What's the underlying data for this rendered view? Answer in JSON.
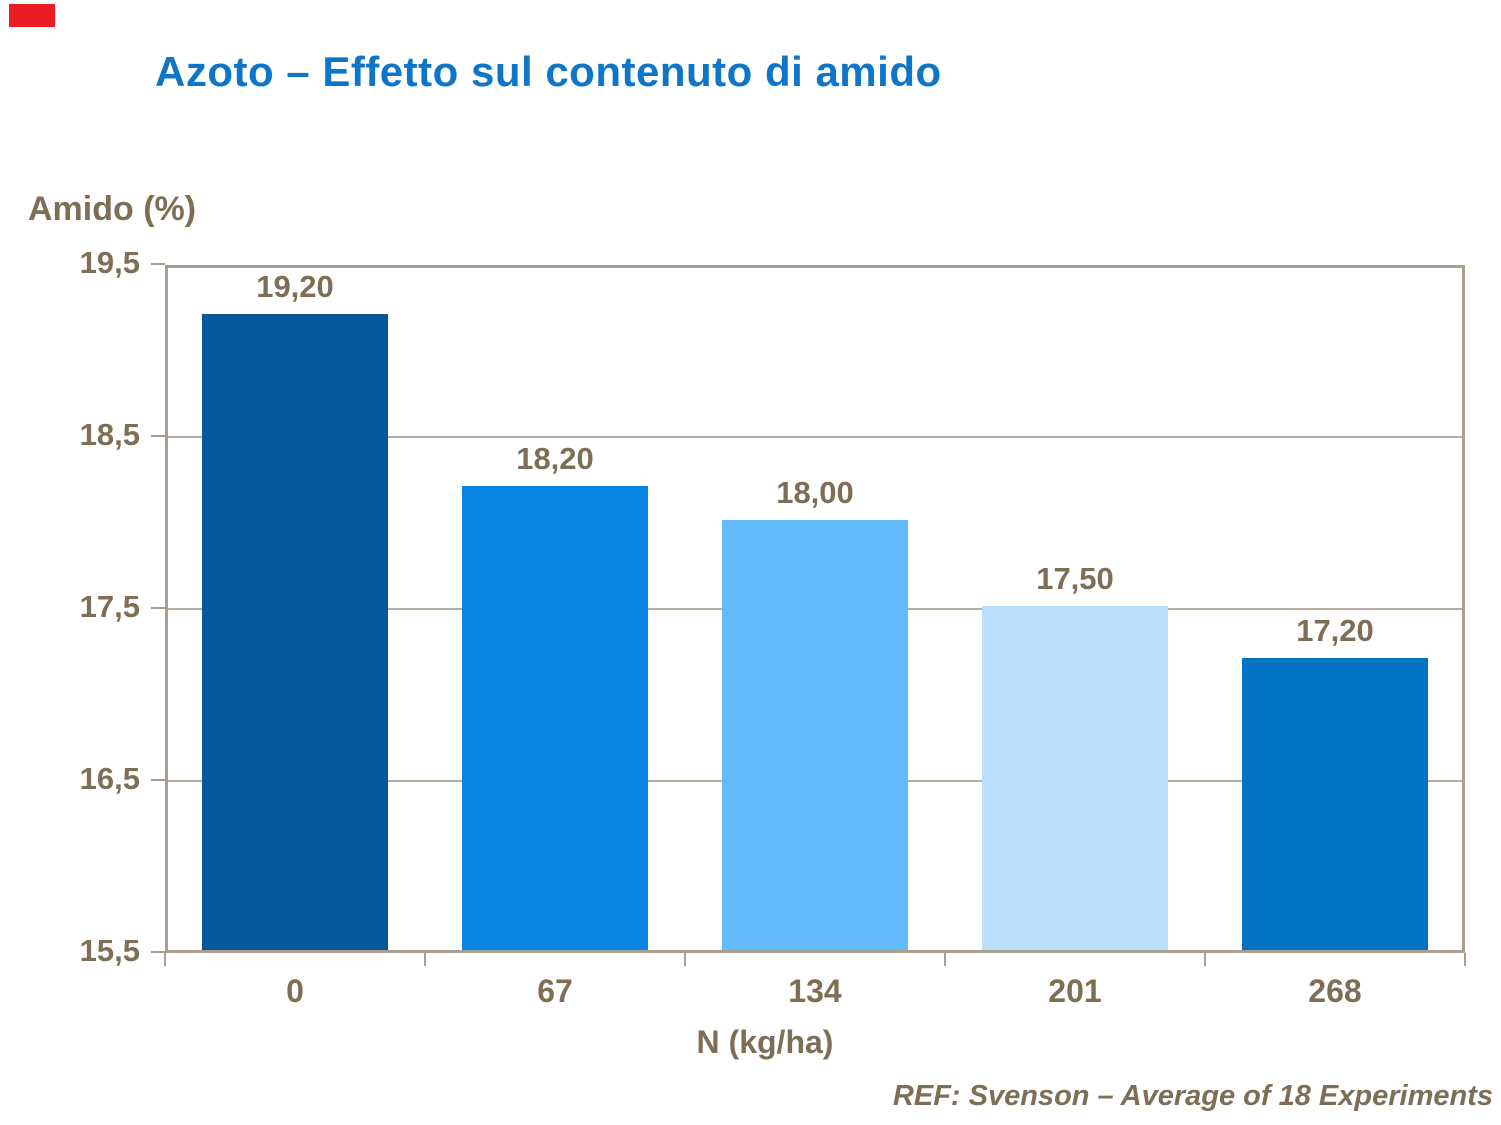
{
  "accent": {
    "red_block": "#EC1C24",
    "title_color": "#0E76C8",
    "text_brown": "#7E6E55",
    "plot_border": "#A89E91",
    "gridline": "#B6ADA1"
  },
  "chart_data": {
    "type": "bar",
    "title": "Azoto – Effetto sul contenuto di amido",
    "ylabel": "Amido (%)",
    "xlabel": "N (kg/ha)",
    "categories": [
      "0",
      "67",
      "134",
      "201",
      "268"
    ],
    "values": [
      19.2,
      18.2,
      18.0,
      17.5,
      17.2
    ],
    "value_labels": [
      "19,20",
      "18,20",
      "18,00",
      "17,50",
      "17,20"
    ],
    "bar_colors": [
      "#075899",
      "#0884E4",
      "#63BAFB",
      "#BBDEFC",
      "#0272C2"
    ],
    "ylim": [
      15.5,
      19.5
    ],
    "yticks": [
      19.5,
      18.5,
      17.5,
      16.5,
      15.5
    ],
    "ytick_labels": [
      "19,5",
      "18,5",
      "17,5",
      "16,5",
      "15,5"
    ],
    "grid": "horizontal",
    "legend": "none",
    "footer": "REF: Svenson – Average of 18 Experiments"
  }
}
